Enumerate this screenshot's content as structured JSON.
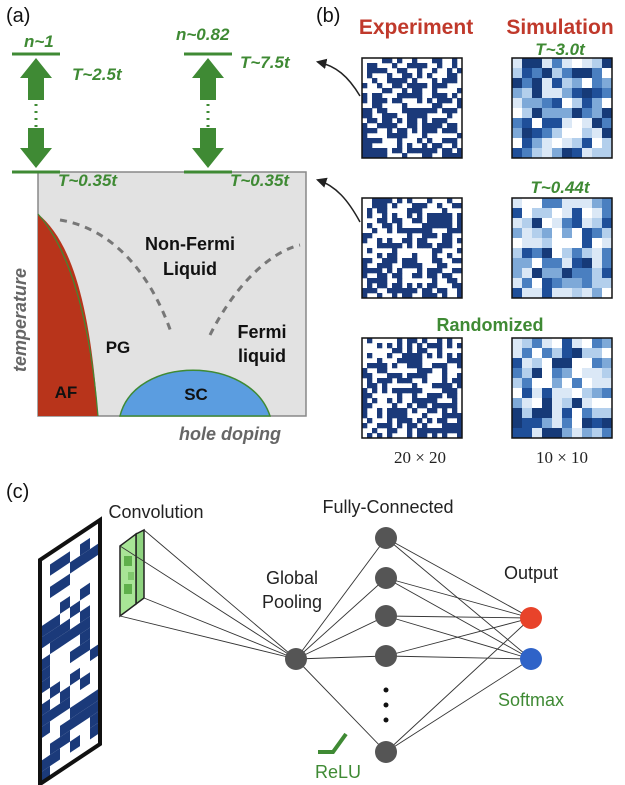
{
  "panel_a": {
    "label": "(a)",
    "left_arrow": {
      "top_label": "n~1",
      "temp_high": "T~2.5t",
      "temp_low": "T~0.35t"
    },
    "right_arrow": {
      "top_label": "n~0.82",
      "temp_high": "T~7.5t",
      "temp_low": "T~0.35t"
    },
    "y_axis_label": "temperature",
    "x_axis_label": "hole doping",
    "regions": {
      "non_fermi": [
        "Non-Fermi",
        "Liquid"
      ],
      "fermi": [
        "Fermi",
        "liquid"
      ],
      "pg": "PG",
      "af": "AF",
      "sc": "SC"
    },
    "colors": {
      "green": "#3f8a34",
      "af": "#b8341b",
      "sc": "#5b9de0",
      "bg": "#e2e2e2"
    }
  },
  "panel_b": {
    "label": "(b)",
    "experiment_header": "Experiment",
    "simulation_header": "Simulation",
    "sim_temp_1": "T~3.0t",
    "sim_temp_2": "T~0.44t",
    "randomized_label": "Randomized",
    "size_left": "20 × 20",
    "size_right": "10 × 10",
    "colors": {
      "header_red": "#c0392b",
      "navy": "#1b3a7a"
    }
  },
  "panel_c": {
    "label": "(c)",
    "convolution": "Convolution",
    "fully_connected": "Fully-Connected",
    "global_pooling": [
      "Global",
      "Pooling"
    ],
    "output": "Output",
    "softmax": "Softmax",
    "relu": "ReLU",
    "colors": {
      "node": "#555555",
      "out_red": "#e8432a",
      "out_blue": "#2f63c8"
    }
  }
}
